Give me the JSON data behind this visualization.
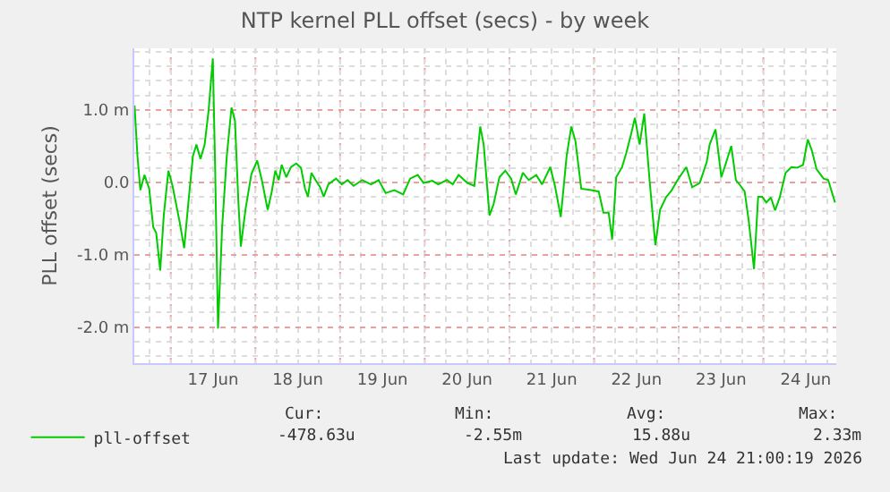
{
  "chart_data": {
    "type": "line",
    "title": "NTP kernel PLL offset (secs) - by week",
    "ylabel": "PLL offset (secs)",
    "x": [
      "2026-06-16T13:44",
      "2026-06-16T14:34",
      "2026-06-16T15:23",
      "2026-06-16T16:33",
      "2026-06-16T17:53",
      "2026-06-16T19:02",
      "2026-06-16T19:52",
      "2026-06-16T21:01",
      "2026-06-16T22:01",
      "2026-06-16T23:20",
      "2026-06-17T00:30",
      "2026-06-17T02:29",
      "2026-06-17T03:48",
      "2026-06-17T05:08",
      "2026-06-17T06:17",
      "2026-06-17T07:17",
      "2026-06-17T08:26",
      "2026-06-17T09:36",
      "2026-06-17T10:45",
      "2026-06-17T11:55",
      "2026-06-17T12:35",
      "2026-06-17T13:24",
      "2026-06-17T14:34",
      "2026-06-17T15:53",
      "2026-06-17T17:13",
      "2026-06-17T18:12",
      "2026-06-17T19:12",
      "2026-06-17T19:52",
      "2026-06-17T21:11",
      "2026-06-17T22:51",
      "2026-06-18T00:30",
      "2026-06-18T01:49",
      "2026-06-18T03:29",
      "2026-06-18T04:38",
      "2026-06-18T05:38",
      "2026-06-18T06:37",
      "2026-06-18T07:27",
      "2026-06-18T08:46",
      "2026-06-18T10:06",
      "2026-06-18T11:35",
      "2026-06-18T12:55",
      "2026-06-18T14:04",
      "2026-06-18T14:54",
      "2026-06-18T15:53",
      "2026-06-18T17:03",
      "2026-06-18T18:22",
      "2026-06-18T19:22",
      "2026-06-18T20:41",
      "2026-06-18T22:50",
      "2026-06-19T00:30",
      "2026-06-19T02:09",
      "2026-06-19T03:49",
      "2026-06-19T06:17",
      "2026-06-19T08:46",
      "2026-06-19T10:56",
      "2026-06-19T12:55",
      "2026-06-19T15:23",
      "2026-06-19T17:53",
      "2026-06-19T19:52",
      "2026-06-19T22:01",
      "2026-06-19T23:40",
      "2026-06-20T02:09",
      "2026-06-20T03:49",
      "2026-06-20T06:17",
      "2026-06-20T07:57",
      "2026-06-20T09:36",
      "2026-06-20T12:05",
      "2026-06-20T14:04",
      "2026-06-20T15:44",
      "2026-06-20T16:43",
      "2026-06-20T18:22",
      "2026-06-20T19:32",
      "2026-06-20T21:11",
      "2026-06-20T22:50",
      "2026-06-21T00:30",
      "2026-06-21T01:49",
      "2026-06-21T03:49",
      "2026-06-21T05:28",
      "2026-06-21T07:37",
      "2026-06-21T09:16",
      "2026-06-21T11:35",
      "2026-06-21T12:55",
      "2026-06-21T14:34",
      "2026-06-21T16:13",
      "2026-06-21T17:33",
      "2026-06-21T18:43",
      "2026-06-21T20:22",
      "2026-06-21T23:10",
      "2026-06-22T01:20",
      "2026-06-22T02:39",
      "2026-06-22T04:08",
      "2026-06-22T05:08",
      "2026-06-22T06:17",
      "2026-06-22T07:57",
      "2026-06-22T09:07",
      "2026-06-22T10:26",
      "2026-06-22T11:35",
      "2026-06-22T12:55",
      "2026-06-22T14:14",
      "2026-06-22T15:44",
      "2026-06-22T17:23",
      "2026-06-22T18:43",
      "2026-06-22T20:22",
      "2026-06-22T22:01",
      "2026-06-22T23:40",
      "2026-06-23T02:09",
      "2026-06-23T03:49",
      "2026-06-23T05:58",
      "2026-06-23T07:57",
      "2026-06-23T08:46",
      "2026-06-23T10:26",
      "2026-06-23T12:05",
      "2026-06-23T13:14",
      "2026-06-23T14:54",
      "2026-06-23T16:13",
      "2026-06-23T17:32",
      "2026-06-23T18:42",
      "2026-06-23T19:52",
      "2026-06-23T21:21",
      "2026-06-23T22:31",
      "2026-06-23T23:40",
      "2026-06-24T00:50",
      "2026-06-24T02:09",
      "2026-06-24T03:19",
      "2026-06-24T04:38",
      "2026-06-24T06:17",
      "2026-06-24T07:56",
      "2026-06-24T09:36",
      "2026-06-24T11:16",
      "2026-06-24T12:35",
      "2026-06-24T13:44",
      "2026-06-24T15:04",
      "2026-06-24T17:03",
      "2026-06-24T18:22",
      "2026-06-24T20:19"
    ],
    "series": [
      {
        "name": "pll-offset",
        "color": "#00cc00",
        "values": [
          1.06,
          0.36,
          -0.11,
          0.1,
          -0.09,
          -0.62,
          -0.7,
          -1.22,
          -0.46,
          0.16,
          -0.05,
          -0.54,
          -0.91,
          -0.21,
          0.36,
          0.52,
          0.32,
          0.52,
          1.0,
          1.71,
          0.2,
          -2.02,
          -0.62,
          0.36,
          1.03,
          0.85,
          -0.3,
          -0.89,
          -0.38,
          0.11,
          0.3,
          0.03,
          -0.38,
          -0.13,
          0.16,
          0.03,
          0.24,
          0.07,
          0.21,
          0.26,
          0.2,
          -0.09,
          -0.2,
          0.13,
          0.03,
          -0.07,
          -0.2,
          -0.03,
          0.05,
          -0.03,
          0.03,
          -0.05,
          0.03,
          -0.03,
          0.03,
          -0.15,
          -0.11,
          -0.17,
          0.05,
          0.1,
          -0.01,
          0.02,
          -0.03,
          0.03,
          -0.03,
          0.1,
          -0.01,
          -0.05,
          0.77,
          0.52,
          -0.46,
          -0.3,
          0.07,
          0.16,
          0.05,
          -0.17,
          0.13,
          0.03,
          0.1,
          -0.03,
          0.21,
          -0.05,
          -0.48,
          0.36,
          0.77,
          0.57,
          -0.09,
          -0.11,
          -0.13,
          -0.42,
          -0.42,
          -0.79,
          0.07,
          0.21,
          0.4,
          0.65,
          0.89,
          0.52,
          0.95,
          0.03,
          -0.87,
          -0.38,
          -0.21,
          -0.11,
          0.03,
          0.21,
          -0.07,
          -0.01,
          0.28,
          0.52,
          0.73,
          0.07,
          0.24,
          0.5,
          0.03,
          -0.05,
          -0.13,
          -0.54,
          -1.2,
          -0.2,
          -0.2,
          -0.28,
          -0.21,
          -0.39,
          -0.21,
          0.13,
          0.21,
          0.2,
          0.24,
          0.59,
          0.44,
          0.18,
          0.05,
          0.03,
          -0.28
        ]
      }
    ],
    "xlim": [
      "2026-06-16T13:40",
      "2026-06-24T20:40"
    ],
    "xticks": [
      {
        "value": "2026-06-17T00:00",
        "label": null
      },
      {
        "value": "2026-06-17T12:00",
        "label": "17 Jun"
      },
      {
        "value": "2026-06-18T00:00",
        "label": null
      },
      {
        "value": "2026-06-18T12:00",
        "label": "18 Jun"
      },
      {
        "value": "2026-06-19T00:00",
        "label": null
      },
      {
        "value": "2026-06-19T12:00",
        "label": "19 Jun"
      },
      {
        "value": "2026-06-20T00:00",
        "label": null
      },
      {
        "value": "2026-06-20T12:00",
        "label": "20 Jun"
      },
      {
        "value": "2026-06-21T00:00",
        "label": null
      },
      {
        "value": "2026-06-21T12:00",
        "label": "21 Jun"
      },
      {
        "value": "2026-06-22T00:00",
        "label": null
      },
      {
        "value": "2026-06-22T12:00",
        "label": "22 Jun"
      },
      {
        "value": "2026-06-23T00:00",
        "label": null
      },
      {
        "value": "2026-06-23T12:00",
        "label": "23 Jun"
      },
      {
        "value": "2026-06-24T00:00",
        "label": null
      },
      {
        "value": "2026-06-24T12:00",
        "label": "24 Jun"
      }
    ],
    "ylim": [
      -2.5,
      1.85
    ],
    "yticks": [
      {
        "value": -2,
        "label": "-2.0 m"
      },
      {
        "value": -1,
        "label": "-1.0 m"
      },
      {
        "value": 0,
        "label": "0.0"
      },
      {
        "value": 1,
        "label": "1.0 m"
      }
    ],
    "grid": true,
    "legend": "bottom left",
    "line_style": "solid",
    "marker": "none",
    "annotations": [
      "Cur:",
      "Min:",
      "Avg:",
      "Max:",
      "-478.63u",
      "-2.55m",
      "15.88u",
      "2.33m",
      "Last update: Wed Jun 24 21:00:19 2026"
    ]
  }
}
